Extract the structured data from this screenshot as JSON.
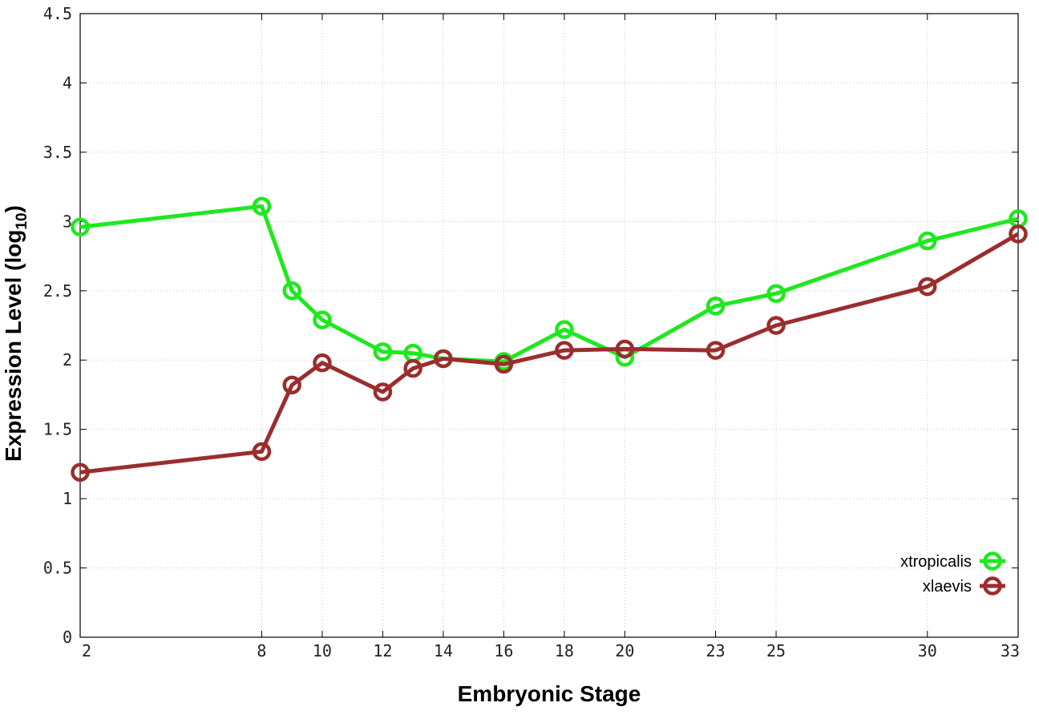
{
  "chart_data": {
    "type": "line",
    "xlabel": "Embryonic Stage",
    "ylabel": "Expression Level (log",
    "ylabel_sub": "10",
    "ylabel_end": ")",
    "x": [
      2,
      8,
      9,
      10,
      12,
      13,
      14,
      16,
      18,
      20,
      23,
      25,
      30,
      33
    ],
    "x_tick_labels": [
      "2",
      "8",
      "10",
      "12",
      "14",
      "16",
      "18",
      "20",
      "23",
      "25",
      "30",
      "33"
    ],
    "y_tick_labels": [
      "0",
      "0.5",
      "1",
      "1.5",
      "2",
      "2.5",
      "3",
      "3.5",
      "4",
      "4.5"
    ],
    "ylim": [
      0,
      4.5
    ],
    "grid": true,
    "legend_position": "bottom-right",
    "series": [
      {
        "name": "xtropicalis",
        "color": "#1ee81e",
        "values": [
          2.96,
          3.11,
          2.5,
          2.29,
          2.06,
          2.05,
          2.01,
          1.99,
          2.22,
          2.02,
          2.39,
          2.48,
          2.86,
          3.02
        ]
      },
      {
        "name": "xlaevis",
        "color": "#9b2d2d",
        "values": [
          1.19,
          1.34,
          1.82,
          1.98,
          1.77,
          1.94,
          2.01,
          1.97,
          2.07,
          2.08,
          2.07,
          2.25,
          2.53,
          2.91
        ]
      }
    ]
  }
}
